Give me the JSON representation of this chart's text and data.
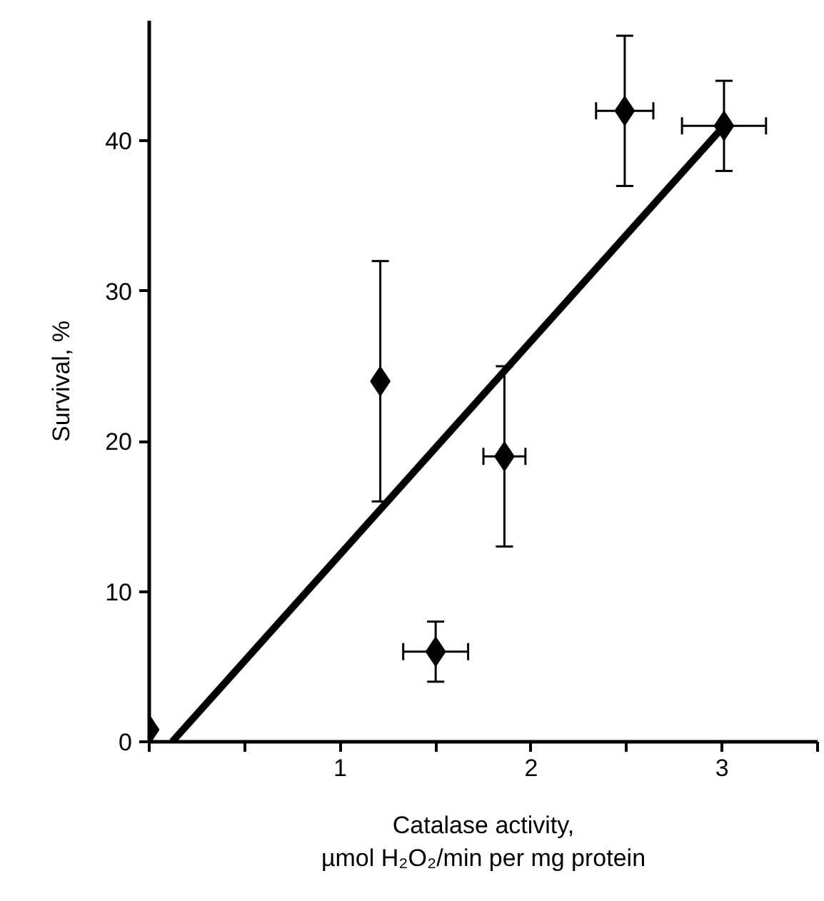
{
  "chart_data": {
    "type": "scatter",
    "xlabel": "Catalase activity,\nµmol H₂O₂/min per mg protein",
    "ylabel": "Survival, %",
    "xlim": [
      0,
      3.5
    ],
    "ylim": [
      0,
      48
    ],
    "xticks": [
      {
        "value": 0,
        "label": null
      },
      {
        "value": 0.5,
        "label": null
      },
      1,
      {
        "value": 1.5,
        "label": null
      },
      2,
      {
        "value": 2.5,
        "label": null
      },
      3,
      {
        "value": 3.5,
        "label": null
      }
    ],
    "yticks": [
      0,
      10,
      20,
      30,
      40
    ],
    "grid": false,
    "series": [
      {
        "color": "#000000",
        "marker": "diamond",
        "x": [
          0,
          1.21,
          1.5,
          1.86,
          2.49,
          3.01
        ],
        "values": [
          0.8,
          24,
          6,
          19,
          42,
          41
        ],
        "errors": [
          null,
          8,
          2,
          6,
          5,
          [
            38,
            44
          ]
        ],
        "xerrors": [
          null,
          null,
          0.17,
          0.11,
          0.15,
          0.22
        ]
      },
      {
        "type": "line",
        "color": "#000000",
        "line_style": "solid",
        "marker": "none",
        "x": [
          0.12,
          3.01
        ],
        "values": [
          0,
          41
        ]
      }
    ]
  }
}
